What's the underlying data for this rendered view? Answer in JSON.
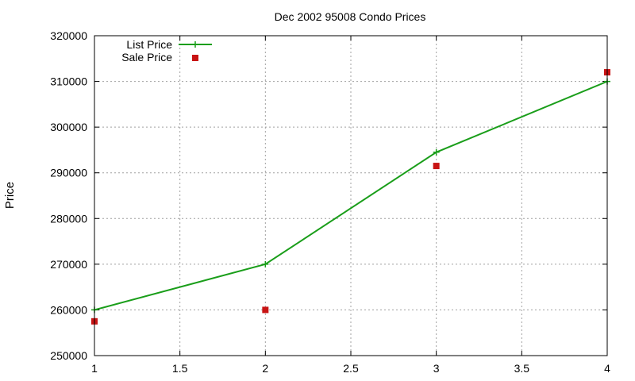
{
  "chart_data": {
    "type": "line",
    "title": "Dec 2002 95008 Condo Prices",
    "xlabel": "",
    "ylabel": "Price",
    "xlim": [
      1,
      4
    ],
    "ylim": [
      250000,
      320000
    ],
    "xticks": [
      "1",
      "1.5",
      "2",
      "2.5",
      "3",
      "3.5",
      "4"
    ],
    "yticks": [
      "250000",
      "260000",
      "270000",
      "280000",
      "290000",
      "300000",
      "310000",
      "320000"
    ],
    "grid": true,
    "legend_position": "top-left",
    "series": [
      {
        "name": "List Price",
        "style": "line+plus",
        "color": "#1a9e1a",
        "x": [
          1,
          2,
          3,
          4
        ],
        "y": [
          260000,
          270000,
          294500,
          310000
        ]
      },
      {
        "name": "Sale Price",
        "style": "square",
        "color": "#c81414",
        "x": [
          1,
          2,
          3,
          4
        ],
        "y": [
          257500,
          260000,
          291500,
          312000
        ]
      }
    ]
  }
}
